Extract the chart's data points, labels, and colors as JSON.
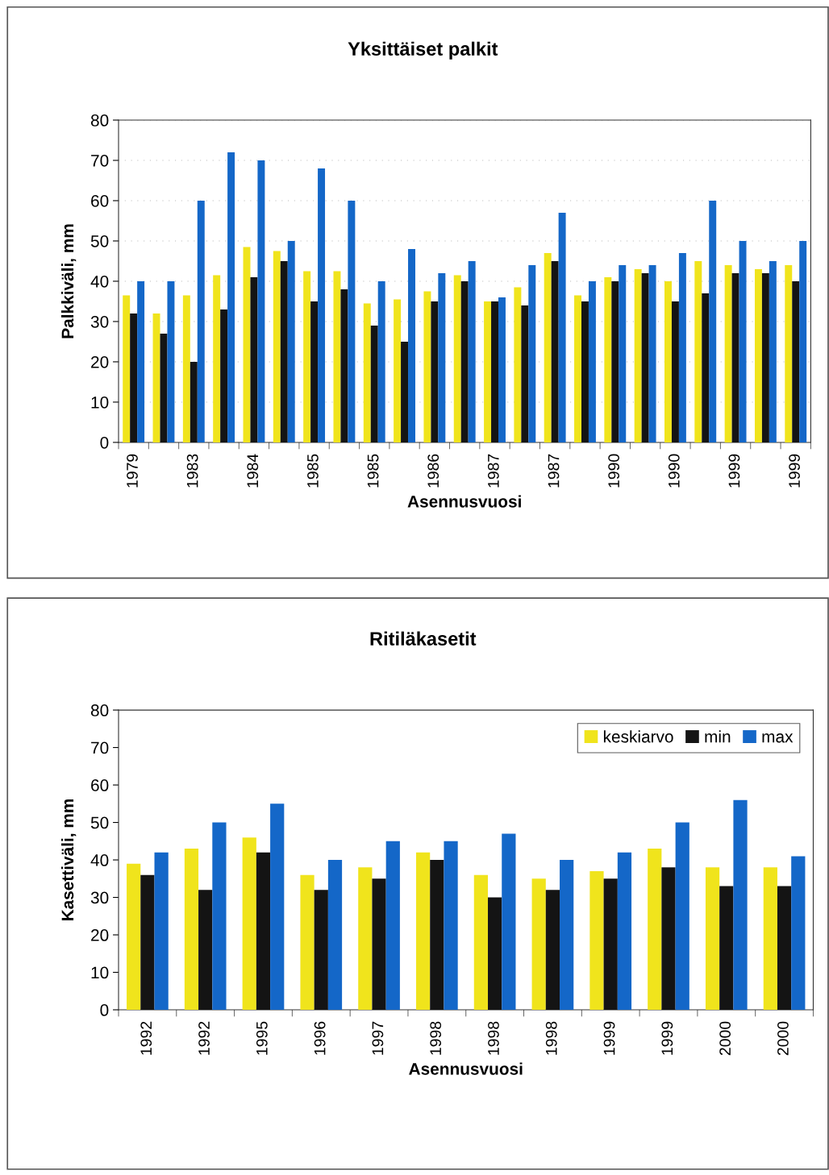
{
  "chart_data": [
    {
      "type": "bar",
      "title": "Yksittäiset palkit",
      "xlabel": "Asennusvuosi",
      "ylabel": "Palkkiväli, mm",
      "categories": [
        "1979",
        null,
        "1983",
        null,
        "1984",
        null,
        "1985",
        null,
        "1985",
        null,
        "1986",
        null,
        "1987",
        null,
        "1987",
        null,
        "1990",
        null,
        "1990",
        null,
        "1999",
        null,
        "1999"
      ],
      "series": [
        {
          "color": "#f0e41c",
          "values": [
            36.5,
            32,
            36.5,
            41.5,
            48.5,
            47.5,
            42.5,
            42.5,
            34.5,
            35.5,
            37.5,
            41.5,
            35,
            38.5,
            47,
            36.5,
            41,
            43,
            40,
            45,
            44,
            43,
            44
          ]
        },
        {
          "color": "#141414",
          "values": [
            32,
            27,
            20,
            33,
            41,
            45,
            35,
            38,
            29,
            25,
            35,
            40,
            35,
            34,
            45,
            35,
            40,
            42,
            35,
            37,
            42,
            42,
            40
          ]
        },
        {
          "color": "#1467c8",
          "values": [
            40,
            40,
            60,
            72,
            70,
            50,
            68,
            60,
            40,
            48,
            42,
            45,
            36,
            44,
            57,
            40,
            44,
            44,
            47,
            60,
            50,
            45,
            50
          ]
        }
      ],
      "ylim": [
        0,
        80
      ],
      "yticks": [
        0,
        10,
        20,
        30,
        40,
        50,
        60,
        70,
        80
      ],
      "grid": "y",
      "legend": false
    },
    {
      "type": "bar",
      "title": "Ritiläkasetit",
      "xlabel": "Asennusvuosi",
      "ylabel": "Kasettiväli, mm",
      "categories": [
        "1992",
        "1992",
        "1995",
        "1996",
        "1997",
        "1998",
        "1998",
        "1998",
        "1999",
        "1999",
        "2000",
        "2000"
      ],
      "series": [
        {
          "name": "keskiarvo",
          "color": "#f0e41c",
          "values": [
            39,
            43,
            46,
            36,
            38,
            42,
            36,
            35,
            37,
            43,
            38,
            38
          ]
        },
        {
          "name": "min",
          "color": "#141414",
          "values": [
            36,
            32,
            42,
            32,
            35,
            40,
            30,
            32,
            35,
            38,
            33,
            33
          ]
        },
        {
          "name": "max",
          "color": "#1467c8",
          "values": [
            42,
            50,
            55,
            40,
            45,
            45,
            47,
            40,
            42,
            50,
            56,
            41
          ]
        }
      ],
      "ylim": [
        0,
        80
      ],
      "yticks": [
        0,
        10,
        20,
        30,
        40,
        50,
        60,
        70,
        80
      ],
      "legend": "top right"
    }
  ]
}
